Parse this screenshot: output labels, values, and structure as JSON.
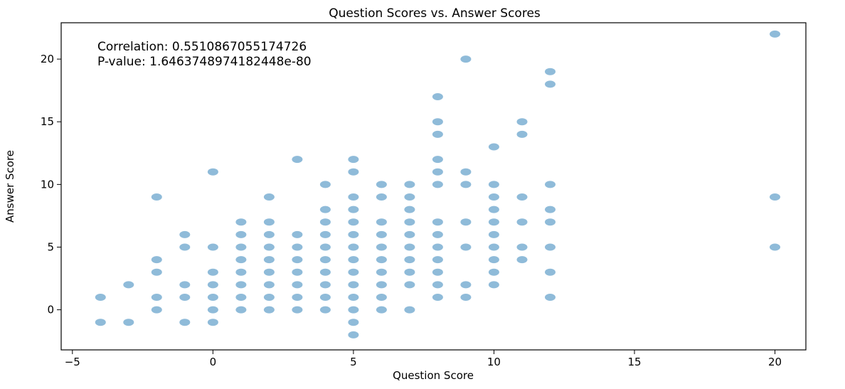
{
  "chart_data": {
    "type": "scatter",
    "title": "Question Scores vs. Answer Scores",
    "xlabel": "Question Score",
    "ylabel": "Answer Score",
    "xlim": [
      -5.4,
      21.1
    ],
    "ylim": [
      -3.2,
      22.9
    ],
    "xticks": [
      -5,
      0,
      5,
      10,
      15,
      20
    ],
    "yticks": [
      0,
      5,
      10,
      15,
      20
    ],
    "grid": false,
    "point_color": "#1f77b4",
    "point_alpha": 0.5,
    "annotations": [
      "Correlation: 0.5510867055174726",
      "P-value: 1.6463748974182448e-80"
    ],
    "points": [
      [
        -4,
        1
      ],
      [
        -4,
        -1
      ],
      [
        -3,
        2
      ],
      [
        -3,
        -1
      ],
      [
        -2,
        9
      ],
      [
        -2,
        4
      ],
      [
        -2,
        3
      ],
      [
        -2,
        1
      ],
      [
        -2,
        0
      ],
      [
        -1,
        6
      ],
      [
        -1,
        5
      ],
      [
        -1,
        2
      ],
      [
        -1,
        1
      ],
      [
        -1,
        -1
      ],
      [
        0,
        11
      ],
      [
        0,
        5
      ],
      [
        0,
        3
      ],
      [
        0,
        2
      ],
      [
        0,
        1
      ],
      [
        0,
        0
      ],
      [
        0,
        -1
      ],
      [
        1,
        7
      ],
      [
        1,
        6
      ],
      [
        1,
        5
      ],
      [
        1,
        4
      ],
      [
        1,
        3
      ],
      [
        1,
        2
      ],
      [
        1,
        1
      ],
      [
        1,
        0
      ],
      [
        2,
        9
      ],
      [
        2,
        7
      ],
      [
        2,
        6
      ],
      [
        2,
        5
      ],
      [
        2,
        4
      ],
      [
        2,
        3
      ],
      [
        2,
        2
      ],
      [
        2,
        1
      ],
      [
        2,
        0
      ],
      [
        3,
        12
      ],
      [
        3,
        6
      ],
      [
        3,
        5
      ],
      [
        3,
        4
      ],
      [
        3,
        3
      ],
      [
        3,
        2
      ],
      [
        3,
        1
      ],
      [
        3,
        0
      ],
      [
        4,
        10
      ],
      [
        4,
        8
      ],
      [
        4,
        7
      ],
      [
        4,
        6
      ],
      [
        4,
        5
      ],
      [
        4,
        4
      ],
      [
        4,
        3
      ],
      [
        4,
        2
      ],
      [
        4,
        1
      ],
      [
        4,
        0
      ],
      [
        5,
        12
      ],
      [
        5,
        11
      ],
      [
        5,
        9
      ],
      [
        5,
        8
      ],
      [
        5,
        7
      ],
      [
        5,
        6
      ],
      [
        5,
        5
      ],
      [
        5,
        4
      ],
      [
        5,
        3
      ],
      [
        5,
        2
      ],
      [
        5,
        1
      ],
      [
        5,
        0
      ],
      [
        5,
        -1
      ],
      [
        5,
        -2
      ],
      [
        6,
        10
      ],
      [
        6,
        9
      ],
      [
        6,
        7
      ],
      [
        6,
        6
      ],
      [
        6,
        5
      ],
      [
        6,
        4
      ],
      [
        6,
        3
      ],
      [
        6,
        2
      ],
      [
        6,
        1
      ],
      [
        6,
        0
      ],
      [
        7,
        10
      ],
      [
        7,
        9
      ],
      [
        7,
        8
      ],
      [
        7,
        7
      ],
      [
        7,
        6
      ],
      [
        7,
        5
      ],
      [
        7,
        4
      ],
      [
        7,
        3
      ],
      [
        7,
        2
      ],
      [
        7,
        0
      ],
      [
        8,
        17
      ],
      [
        8,
        15
      ],
      [
        8,
        14
      ],
      [
        8,
        12
      ],
      [
        8,
        11
      ],
      [
        8,
        10
      ],
      [
        8,
        7
      ],
      [
        8,
        6
      ],
      [
        8,
        5
      ],
      [
        8,
        4
      ],
      [
        8,
        3
      ],
      [
        8,
        2
      ],
      [
        8,
        1
      ],
      [
        9,
        20
      ],
      [
        9,
        11
      ],
      [
        9,
        10
      ],
      [
        9,
        7
      ],
      [
        9,
        5
      ],
      [
        9,
        2
      ],
      [
        9,
        1
      ],
      [
        10,
        13
      ],
      [
        10,
        10
      ],
      [
        10,
        9
      ],
      [
        10,
        8
      ],
      [
        10,
        7
      ],
      [
        10,
        6
      ],
      [
        10,
        5
      ],
      [
        10,
        4
      ],
      [
        10,
        3
      ],
      [
        10,
        2
      ],
      [
        11,
        15
      ],
      [
        11,
        14
      ],
      [
        11,
        9
      ],
      [
        11,
        7
      ],
      [
        11,
        5
      ],
      [
        11,
        4
      ],
      [
        12,
        19
      ],
      [
        12,
        18
      ],
      [
        12,
        10
      ],
      [
        12,
        8
      ],
      [
        12,
        7
      ],
      [
        12,
        5
      ],
      [
        12,
        3
      ],
      [
        12,
        1
      ],
      [
        20,
        22
      ],
      [
        20,
        9
      ],
      [
        20,
        5
      ]
    ]
  }
}
